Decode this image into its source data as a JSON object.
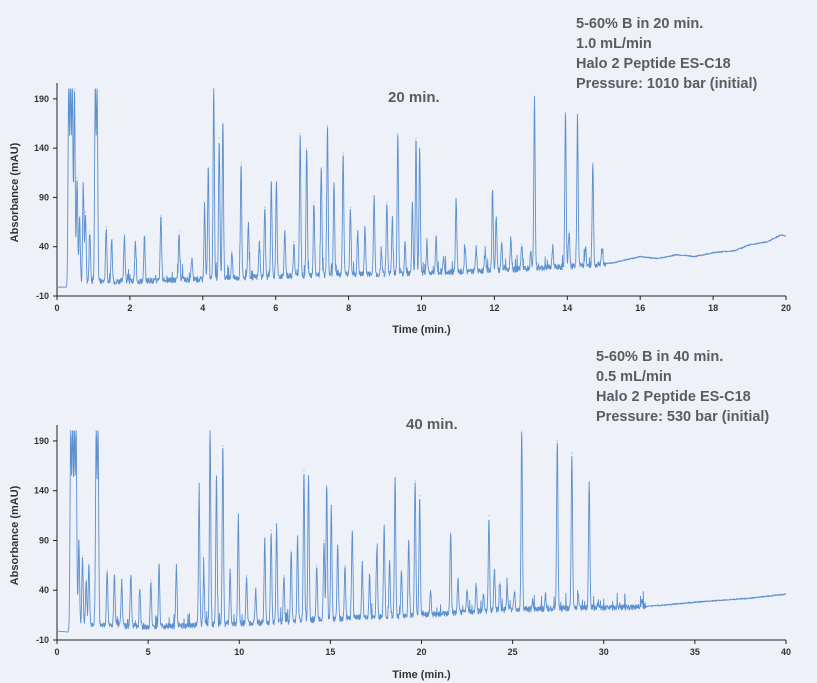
{
  "chart_data": [
    {
      "type": "line",
      "label": "20 min.",
      "info": [
        "5-60% B in 20 min.",
        "1.0 mL/min",
        "Halo 2 Peptide ES-C18",
        "Pressure: 1010 bar (initial)"
      ],
      "xlabel": "Time (min.)",
      "ylabel": "Absorbance (mAU)",
      "xlim": [
        0,
        20
      ],
      "ylim": [
        -10,
        200
      ],
      "xticks": [
        0,
        2,
        4,
        6,
        8,
        10,
        12,
        14,
        16,
        18,
        20
      ],
      "yticks": [
        -10,
        40,
        90,
        140,
        190
      ],
      "series_color": "#5b8fd0",
      "baseline_points": [
        [
          0,
          -1
        ],
        [
          0.3,
          -1
        ],
        [
          0.35,
          2
        ],
        [
          1,
          5
        ],
        [
          2,
          5
        ],
        [
          4,
          7
        ],
        [
          6,
          10
        ],
        [
          8,
          12
        ],
        [
          10,
          13
        ],
        [
          12,
          16
        ],
        [
          14,
          20
        ],
        [
          14.9,
          22
        ],
        [
          15.3,
          24
        ],
        [
          16,
          30
        ],
        [
          16.5,
          28
        ],
        [
          17,
          32
        ],
        [
          17.5,
          30
        ],
        [
          18,
          34
        ],
        [
          18.6,
          36
        ],
        [
          19,
          42
        ],
        [
          19.5,
          45
        ],
        [
          19.85,
          52
        ],
        [
          20,
          51
        ]
      ],
      "peaks": [
        [
          0.32,
          200
        ],
        [
          0.37,
          200
        ],
        [
          0.42,
          200
        ],
        [
          0.48,
          200
        ],
        [
          0.55,
          110
        ],
        [
          0.62,
          70
        ],
        [
          0.72,
          105
        ],
        [
          0.78,
          75
        ],
        [
          0.9,
          55
        ],
        [
          1.05,
          200
        ],
        [
          1.1,
          200
        ],
        [
          1.35,
          60
        ],
        [
          1.5,
          45
        ],
        [
          1.85,
          52
        ],
        [
          2.15,
          45
        ],
        [
          2.4,
          50
        ],
        [
          2.85,
          72
        ],
        [
          3.35,
          55
        ],
        [
          3.7,
          28
        ],
        [
          4.05,
          80
        ],
        [
          4.15,
          120
        ],
        [
          4.3,
          200
        ],
        [
          4.45,
          150
        ],
        [
          4.55,
          165
        ],
        [
          4.8,
          35
        ],
        [
          5.05,
          125
        ],
        [
          5.25,
          65
        ],
        [
          5.55,
          45
        ],
        [
          5.7,
          80
        ],
        [
          5.88,
          105
        ],
        [
          6.02,
          105
        ],
        [
          6.25,
          55
        ],
        [
          6.5,
          45
        ],
        [
          6.67,
          155
        ],
        [
          6.85,
          140
        ],
        [
          7.05,
          85
        ],
        [
          7.25,
          120
        ],
        [
          7.42,
          163
        ],
        [
          7.6,
          105
        ],
        [
          7.85,
          135
        ],
        [
          8.05,
          80
        ],
        [
          8.25,
          55
        ],
        [
          8.45,
          60
        ],
        [
          8.7,
          90
        ],
        [
          8.9,
          35
        ],
        [
          9.05,
          85
        ],
        [
          9.2,
          70
        ],
        [
          9.35,
          155
        ],
        [
          9.55,
          45
        ],
        [
          9.75,
          85
        ],
        [
          9.85,
          150
        ],
        [
          9.95,
          140
        ],
        [
          10.15,
          45
        ],
        [
          10.4,
          50
        ],
        [
          10.6,
          30
        ],
        [
          10.95,
          89
        ],
        [
          11.2,
          40
        ],
        [
          11.5,
          40
        ],
        [
          11.75,
          35
        ],
        [
          11.95,
          96
        ],
        [
          12.05,
          70
        ],
        [
          12.2,
          45
        ],
        [
          12.45,
          50
        ],
        [
          12.75,
          42
        ],
        [
          13.0,
          35
        ],
        [
          13.1,
          190
        ],
        [
          13.6,
          40
        ],
        [
          13.95,
          176
        ],
        [
          14.05,
          55
        ],
        [
          14.28,
          170
        ],
        [
          14.5,
          40
        ],
        [
          14.7,
          125
        ],
        [
          14.95,
          38
        ]
      ]
    },
    {
      "type": "line",
      "label": "40 min.",
      "info": [
        "5-60% B in 40 min.",
        "0.5 mL/min",
        "Halo 2 Peptide ES-C18",
        "Pressure: 530 bar (initial)"
      ],
      "xlabel": "Time (min.)",
      "ylabel": "Absorbance (mAU)",
      "xlim": [
        0,
        40
      ],
      "ylim": [
        -10,
        200
      ],
      "xticks": [
        0,
        5,
        10,
        15,
        20,
        25,
        30,
        35,
        40
      ],
      "yticks": [
        -10,
        40,
        90,
        140,
        190
      ],
      "series_color": "#5b8fd0",
      "baseline_points": [
        [
          0,
          -1
        ],
        [
          0.6,
          -2
        ],
        [
          0.8,
          4
        ],
        [
          2,
          6
        ],
        [
          5,
          3
        ],
        [
          8,
          5
        ],
        [
          12,
          8
        ],
        [
          16,
          12
        ],
        [
          20,
          15
        ],
        [
          24,
          20
        ],
        [
          28,
          22
        ],
        [
          30,
          22
        ],
        [
          32,
          23
        ],
        [
          35,
          28
        ],
        [
          38,
          32
        ],
        [
          40,
          36
        ]
      ],
      "peaks": [
        [
          0.75,
          200
        ],
        [
          0.85,
          200
        ],
        [
          0.95,
          200
        ],
        [
          1.05,
          200
        ],
        [
          1.2,
          90
        ],
        [
          1.4,
          75
        ],
        [
          1.6,
          50
        ],
        [
          1.75,
          65
        ],
        [
          2.15,
          200
        ],
        [
          2.25,
          200
        ],
        [
          2.75,
          60
        ],
        [
          3.15,
          55
        ],
        [
          3.55,
          50
        ],
        [
          4.05,
          55
        ],
        [
          4.55,
          40
        ],
        [
          5.15,
          50
        ],
        [
          5.6,
          65
        ],
        [
          6.55,
          65
        ],
        [
          7.8,
          136
        ],
        [
          8.05,
          60
        ],
        [
          8.4,
          200
        ],
        [
          8.75,
          155
        ],
        [
          9.1,
          185
        ],
        [
          9.5,
          60
        ],
        [
          9.95,
          115
        ],
        [
          10.4,
          55
        ],
        [
          10.9,
          40
        ],
        [
          11.4,
          90
        ],
        [
          11.75,
          100
        ],
        [
          12.05,
          105
        ],
        [
          12.45,
          55
        ],
        [
          12.85,
          80
        ],
        [
          13.2,
          92
        ],
        [
          13.55,
          160
        ],
        [
          13.8,
          155
        ],
        [
          14.25,
          65
        ],
        [
          14.65,
          90
        ],
        [
          14.8,
          145
        ],
        [
          15.05,
          125
        ],
        [
          15.4,
          85
        ],
        [
          15.8,
          65
        ],
        [
          16.2,
          100
        ],
        [
          16.75,
          65
        ],
        [
          17.15,
          55
        ],
        [
          17.55,
          80
        ],
        [
          17.95,
          105
        ],
        [
          18.25,
          70
        ],
        [
          18.55,
          152
        ],
        [
          18.9,
          60
        ],
        [
          19.3,
          90
        ],
        [
          19.65,
          150
        ],
        [
          19.9,
          135
        ],
        [
          20.5,
          40
        ],
        [
          21.6,
          98
        ],
        [
          22.0,
          50
        ],
        [
          22.5,
          40
        ],
        [
          23.0,
          45
        ],
        [
          23.4,
          35
        ],
        [
          23.7,
          115
        ],
        [
          24.0,
          60
        ],
        [
          24.3,
          48
        ],
        [
          24.7,
          42
        ],
        [
          25.1,
          40
        ],
        [
          25.5,
          200
        ],
        [
          26.1,
          30
        ],
        [
          26.8,
          35
        ],
        [
          27.45,
          190
        ],
        [
          28.25,
          178
        ],
        [
          28.6,
          35
        ],
        [
          29.2,
          148
        ],
        [
          29.7,
          28
        ],
        [
          32.1,
          30
        ]
      ]
    }
  ]
}
